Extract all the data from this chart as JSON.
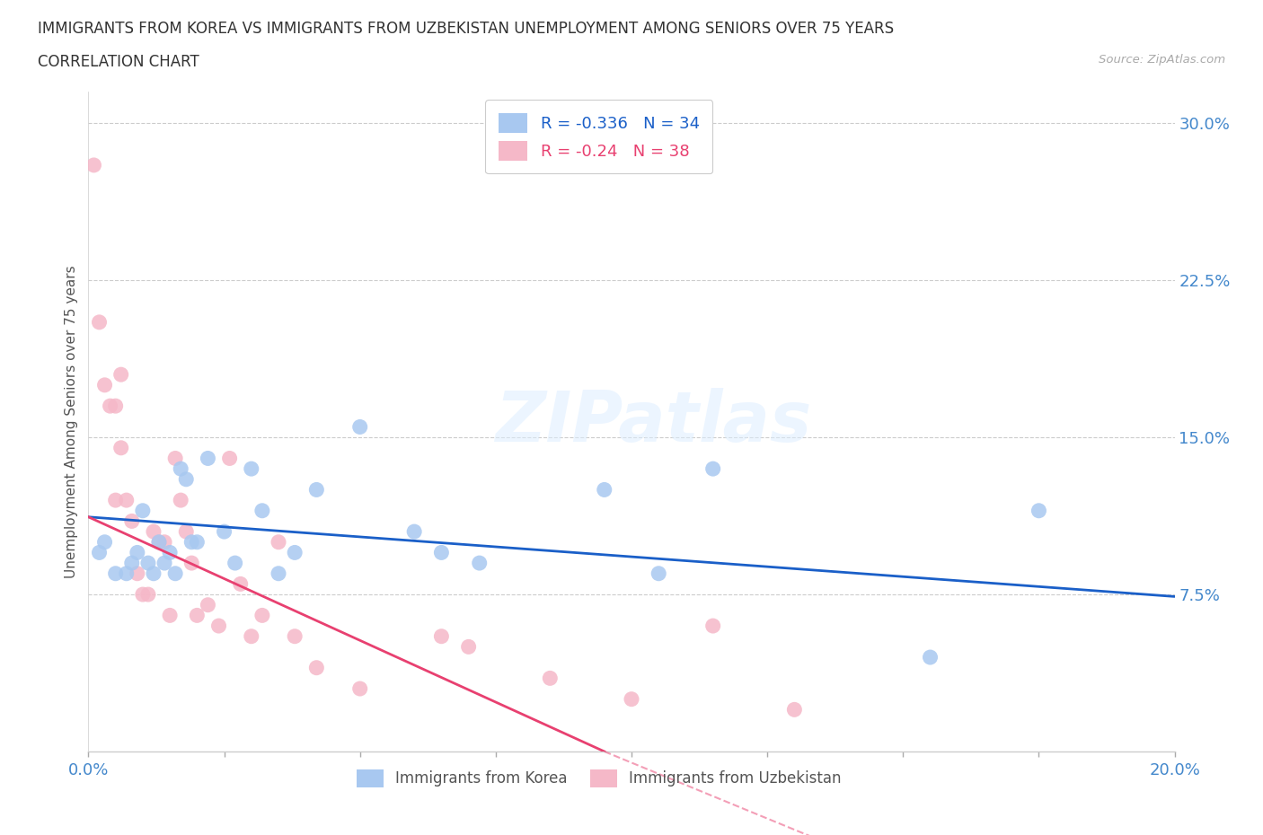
{
  "title_line1": "IMMIGRANTS FROM KOREA VS IMMIGRANTS FROM UZBEKISTAN UNEMPLOYMENT AMONG SENIORS OVER 75 YEARS",
  "title_line2": "CORRELATION CHART",
  "source_text": "Source: ZipAtlas.com",
  "ylabel": "Unemployment Among Seniors over 75 years",
  "xlim": [
    0.0,
    0.2
  ],
  "ylim": [
    0.0,
    0.315
  ],
  "yticks_right": [
    0.075,
    0.15,
    0.225,
    0.3
  ],
  "ytick_right_labels": [
    "7.5%",
    "15.0%",
    "22.5%",
    "30.0%"
  ],
  "xticks": [
    0.0,
    0.025,
    0.05,
    0.075,
    0.1,
    0.125,
    0.15,
    0.175,
    0.2
  ],
  "xtick_labels": [
    "0.0%",
    "",
    "",
    "",
    "",
    "",
    "",
    "",
    "20.0%"
  ],
  "korea_color": "#a8c8f0",
  "uzbekistan_color": "#f5b8c8",
  "korea_line_color": "#1a5fc8",
  "uzbekistan_line_color": "#e84070",
  "korea_R": -0.336,
  "korea_N": 34,
  "uzbekistan_R": -0.24,
  "uzbekistan_N": 38,
  "background_color": "#ffffff",
  "grid_color": "#cccccc",
  "watermark": "ZIPatlas",
  "korea_points_x": [
    0.002,
    0.003,
    0.005,
    0.007,
    0.008,
    0.009,
    0.01,
    0.011,
    0.012,
    0.013,
    0.014,
    0.015,
    0.016,
    0.017,
    0.018,
    0.019,
    0.02,
    0.022,
    0.025,
    0.027,
    0.03,
    0.032,
    0.035,
    0.038,
    0.042,
    0.05,
    0.06,
    0.065,
    0.072,
    0.095,
    0.105,
    0.115,
    0.155,
    0.175
  ],
  "korea_points_y": [
    0.095,
    0.1,
    0.085,
    0.085,
    0.09,
    0.095,
    0.115,
    0.09,
    0.085,
    0.1,
    0.09,
    0.095,
    0.085,
    0.135,
    0.13,
    0.1,
    0.1,
    0.14,
    0.105,
    0.09,
    0.135,
    0.115,
    0.085,
    0.095,
    0.125,
    0.155,
    0.105,
    0.095,
    0.09,
    0.125,
    0.085,
    0.135,
    0.045,
    0.115
  ],
  "uzbekistan_points_x": [
    0.001,
    0.002,
    0.003,
    0.004,
    0.005,
    0.005,
    0.006,
    0.006,
    0.007,
    0.008,
    0.009,
    0.01,
    0.011,
    0.012,
    0.013,
    0.014,
    0.015,
    0.016,
    0.017,
    0.018,
    0.019,
    0.02,
    0.022,
    0.024,
    0.026,
    0.028,
    0.03,
    0.032,
    0.035,
    0.038,
    0.042,
    0.05,
    0.065,
    0.07,
    0.085,
    0.1,
    0.115,
    0.13
  ],
  "uzbekistan_points_y": [
    0.28,
    0.205,
    0.175,
    0.165,
    0.165,
    0.12,
    0.145,
    0.18,
    0.12,
    0.11,
    0.085,
    0.075,
    0.075,
    0.105,
    0.1,
    0.1,
    0.065,
    0.14,
    0.12,
    0.105,
    0.09,
    0.065,
    0.07,
    0.06,
    0.14,
    0.08,
    0.055,
    0.065,
    0.1,
    0.055,
    0.04,
    0.03,
    0.055,
    0.05,
    0.035,
    0.025,
    0.06,
    0.02
  ],
  "korea_line_x": [
    0.0,
    0.2
  ],
  "korea_line_y": [
    0.112,
    0.074
  ],
  "uzbekistan_line_x": [
    0.0,
    0.095
  ],
  "uzbekistan_line_y": [
    0.112,
    0.0
  ]
}
